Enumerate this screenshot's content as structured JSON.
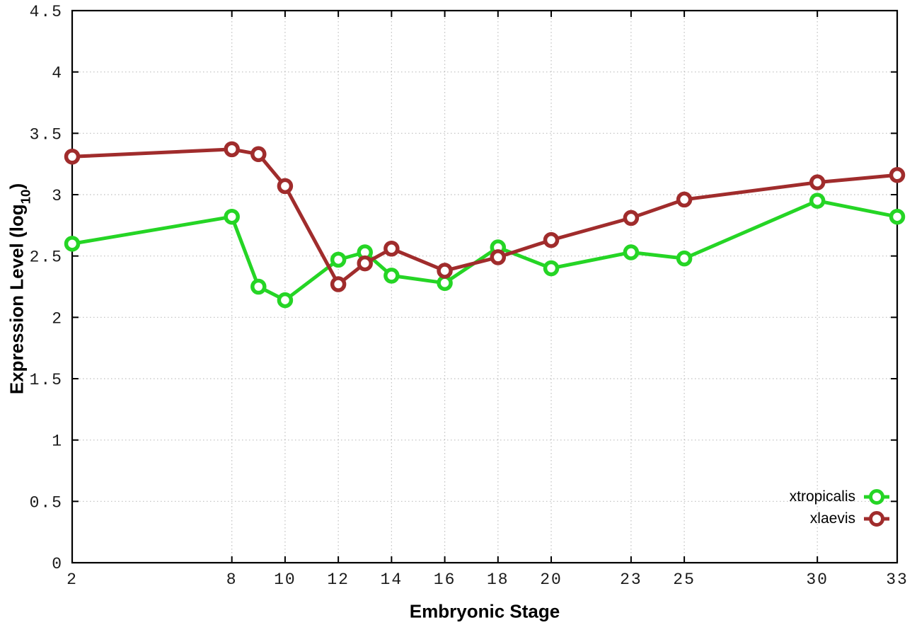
{
  "chart": {
    "xlabel": "Embryonic Stage",
    "ylabel_prefix": "Expression Level (log",
    "ylabel_sub": "10",
    "ylabel_suffix": ")"
  },
  "chart_data": {
    "type": "line",
    "title": "",
    "xlabel": "Embryonic Stage",
    "ylabel": "Expression Level (log10)",
    "x": [
      2,
      8,
      9,
      10,
      12,
      13,
      14,
      16,
      18,
      20,
      23,
      25,
      30,
      33
    ],
    "series": [
      {
        "name": "xtropicalis",
        "color": "#25d525",
        "values": [
          2.6,
          2.82,
          2.25,
          2.14,
          2.47,
          2.53,
          2.34,
          2.28,
          2.57,
          2.4,
          2.53,
          2.48,
          2.95,
          2.82
        ]
      },
      {
        "name": "xlaevis",
        "color": "#a02c2c",
        "values": [
          3.31,
          3.37,
          3.33,
          3.07,
          2.27,
          2.44,
          2.56,
          2.38,
          2.49,
          2.63,
          2.81,
          2.96,
          3.1,
          3.16
        ]
      }
    ],
    "xlim": [
      2,
      33
    ],
    "ylim": [
      0,
      4.5
    ],
    "x_ticks": [
      2,
      8,
      10,
      12,
      14,
      16,
      18,
      20,
      23,
      25,
      30,
      33
    ],
    "x_tick_labels": [
      "2",
      "8",
      "10",
      "12",
      "14",
      "16",
      "18",
      "20",
      "23",
      "25",
      "30",
      "33"
    ],
    "y_ticks": [
      0,
      0.5,
      1,
      1.5,
      2,
      2.5,
      3,
      3.5,
      4,
      4.5
    ],
    "y_tick_labels": [
      "0",
      "0.5",
      "1",
      "1.5",
      "2",
      "2.5",
      "3",
      "3.5",
      "4",
      "4.5"
    ],
    "grid": true,
    "marker": "open-circle",
    "legend_position": "bottom-right-inside"
  }
}
